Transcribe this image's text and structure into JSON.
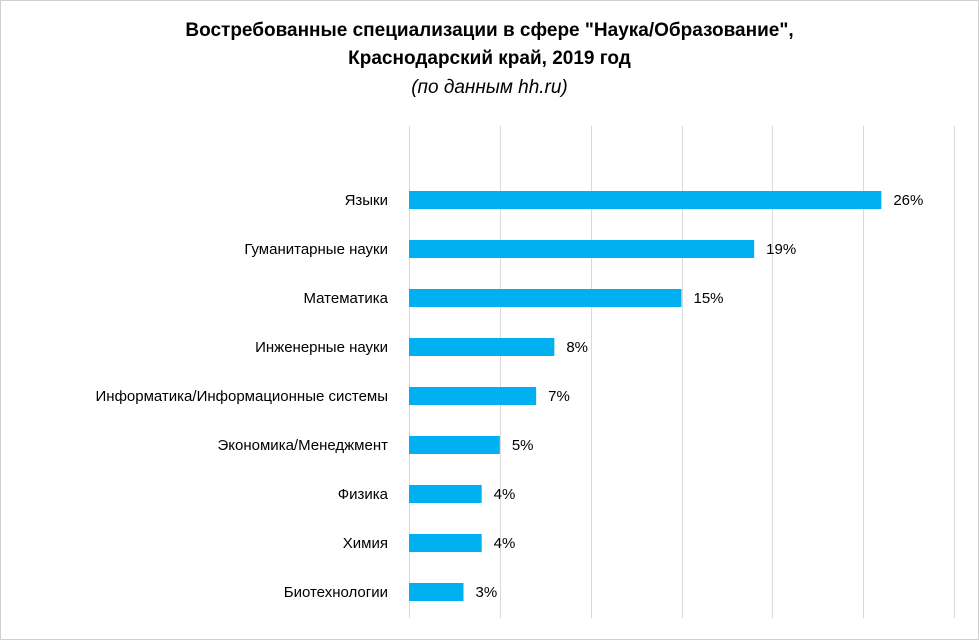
{
  "chart_data": {
    "type": "bar",
    "orientation": "horizontal",
    "title": "Востребованные специализации в сфере \"Наука/Образование\",",
    "title_line2": "Краснодарский край, 2019 год",
    "subtitle": "(по данным hh.ru)",
    "categories": [
      "Языки",
      "Гуманитарные науки",
      "Математика",
      "Инженерные науки",
      "Информатика/Информационные системы",
      "Экономика/Менеджмент",
      "Физика",
      "Химия",
      "Биотехнологии"
    ],
    "values": [
      26,
      19,
      15,
      8,
      7,
      5,
      4,
      4,
      3
    ],
    "data_labels": [
      "26%",
      "19%",
      "15%",
      "8%",
      "7%",
      "5%",
      "4%",
      "4%",
      "3%"
    ],
    "xlim": [
      0,
      30
    ],
    "grid": true,
    "bar_color": "#00b0f0",
    "grid_color": "#d9d9d9",
    "legend": "none"
  }
}
